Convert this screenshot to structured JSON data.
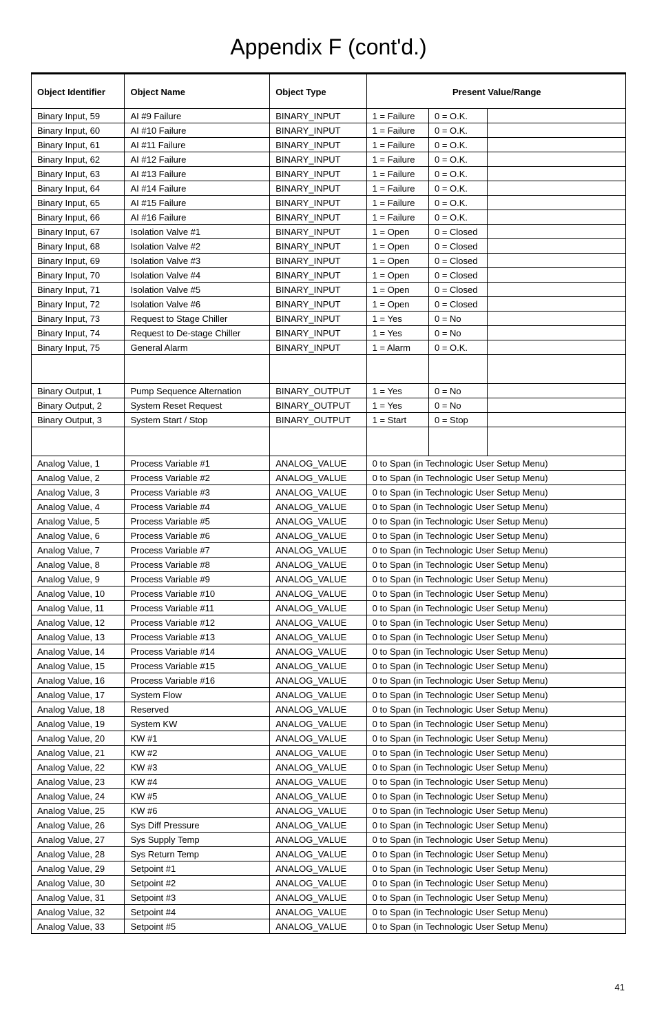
{
  "title": "Appendix F (cont'd.)",
  "page_number": "41",
  "headers": {
    "col1": "Object Identifier",
    "col2": "Object Name",
    "col3": "Object Type",
    "col4": "Present Value/Range"
  },
  "sections": [
    {
      "rows": [
        {
          "id": "Binary Input, 59",
          "name": "AI #9 Failure",
          "type": "BINARY_INPUT",
          "v1": "1 = Failure",
          "v0": "0 = O.K."
        },
        {
          "id": "Binary Input, 60",
          "name": "AI #10 Failure",
          "type": "BINARY_INPUT",
          "v1": "1 = Failure",
          "v0": "0 = O.K."
        },
        {
          "id": "Binary Input, 61",
          "name": "AI #11 Failure",
          "type": "BINARY_INPUT",
          "v1": "1 = Failure",
          "v0": "0 = O.K."
        },
        {
          "id": "Binary Input, 62",
          "name": "AI #12 Failure",
          "type": "BINARY_INPUT",
          "v1": "1 = Failure",
          "v0": "0 = O.K."
        },
        {
          "id": "Binary Input, 63",
          "name": "AI #13 Failure",
          "type": "BINARY_INPUT",
          "v1": "1 = Failure",
          "v0": "0 = O.K."
        },
        {
          "id": "Binary Input, 64",
          "name": "AI #14 Failure",
          "type": "BINARY_INPUT",
          "v1": "1 = Failure",
          "v0": "0 = O.K."
        },
        {
          "id": "Binary Input, 65",
          "name": "AI #15 Failure",
          "type": "BINARY_INPUT",
          "v1": "1 = Failure",
          "v0": "0 = O.K."
        },
        {
          "id": "Binary Input, 66",
          "name": "AI #16 Failure",
          "type": "BINARY_INPUT",
          "v1": "1 = Failure",
          "v0": "0 = O.K."
        },
        {
          "id": "Binary Input, 67",
          "name": "Isolation Valve #1",
          "type": "BINARY_INPUT",
          "v1": "1 = Open",
          "v0": "0 = Closed"
        },
        {
          "id": "Binary Input, 68",
          "name": "Isolation Valve #2",
          "type": "BINARY_INPUT",
          "v1": "1 = Open",
          "v0": "0 = Closed"
        },
        {
          "id": "Binary Input, 69",
          "name": "Isolation Valve #3",
          "type": "BINARY_INPUT",
          "v1": "1 = Open",
          "v0": "0 = Closed"
        },
        {
          "id": "Binary Input, 70",
          "name": "Isolation Valve #4",
          "type": "BINARY_INPUT",
          "v1": "1 = Open",
          "v0": "0 = Closed"
        },
        {
          "id": "Binary Input, 71",
          "name": "Isolation Valve #5",
          "type": "BINARY_INPUT",
          "v1": "1 = Open",
          "v0": "0 = Closed"
        },
        {
          "id": "Binary Input, 72",
          "name": "Isolation Valve #6",
          "type": "BINARY_INPUT",
          "v1": "1 = Open",
          "v0": "0 = Closed"
        },
        {
          "id": "Binary Input, 73",
          "name": "Request to Stage Chiller",
          "type": "BINARY_INPUT",
          "v1": "1 = Yes",
          "v0": "0 = No"
        },
        {
          "id": "Binary Input, 74",
          "name": "Request to De-stage Chiller",
          "type": "BINARY_INPUT",
          "v1": "1 = Yes",
          "v0": "0 = No"
        },
        {
          "id": "Binary Input, 75",
          "name": "General Alarm",
          "type": "BINARY_INPUT",
          "v1": "1 = Alarm",
          "v0": "0 = O.K."
        }
      ],
      "blanks": 2
    },
    {
      "rows": [
        {
          "id": "Binary Output, 1",
          "name": "Pump Sequence Alternation",
          "type": "BINARY_OUTPUT",
          "v1": "1 = Yes",
          "v0": "0 = No"
        },
        {
          "id": "Binary Output, 2",
          "name": "System Reset Request",
          "type": "BINARY_OUTPUT",
          "v1": "1 = Yes",
          "v0": "0 = No"
        },
        {
          "id": "Binary Output, 3",
          "name": "System Start / Stop",
          "type": "BINARY_OUTPUT",
          "v1": "1 = Start",
          "v0": "0 = Stop"
        }
      ],
      "blanks": 2
    },
    {
      "rows": [
        {
          "id": "Analog Value, 1",
          "name": "Process Variable #1",
          "type": "ANALOG_VALUE",
          "range": "0 to Span (in Technologic User Setup Menu)"
        },
        {
          "id": "Analog Value, 2",
          "name": "Process Variable #2",
          "type": "ANALOG_VALUE",
          "range": "0 to Span (in Technologic User Setup Menu)"
        },
        {
          "id": "Analog Value, 3",
          "name": "Process Variable #3",
          "type": "ANALOG_VALUE",
          "range": "0 to Span (in Technologic User Setup Menu)"
        },
        {
          "id": "Analog Value, 4",
          "name": "Process Variable #4",
          "type": "ANALOG_VALUE",
          "range": "0 to Span (in Technologic User Setup Menu)"
        },
        {
          "id": "Analog Value, 5",
          "name": "Process Variable #5",
          "type": "ANALOG_VALUE",
          "range": "0 to Span (in Technologic User Setup Menu)"
        },
        {
          "id": "Analog Value, 6",
          "name": "Process Variable #6",
          "type": "ANALOG_VALUE",
          "range": "0 to Span (in Technologic User Setup Menu)"
        },
        {
          "id": "Analog Value, 7",
          "name": "Process Variable #7",
          "type": "ANALOG_VALUE",
          "range": "0 to Span (in Technologic User Setup Menu)"
        },
        {
          "id": "Analog Value, 8",
          "name": "Process Variable #8",
          "type": "ANALOG_VALUE",
          "range": "0 to Span (in Technologic User Setup Menu)"
        },
        {
          "id": "Analog Value, 9",
          "name": "Process Variable #9",
          "type": "ANALOG_VALUE",
          "range": "0 to Span (in Technologic User Setup Menu)"
        },
        {
          "id": "Analog Value, 10",
          "name": "Process Variable #10",
          "type": "ANALOG_VALUE",
          "range": "0 to Span (in Technologic User Setup Menu)"
        },
        {
          "id": "Analog Value, 11",
          "name": "Process Variable #11",
          "type": "ANALOG_VALUE",
          "range": "0 to Span (in Technologic User Setup Menu)"
        },
        {
          "id": "Analog Value, 12",
          "name": "Process Variable #12",
          "type": "ANALOG_VALUE",
          "range": "0 to Span (in Technologic User Setup Menu)"
        },
        {
          "id": "Analog Value, 13",
          "name": "Process Variable #13",
          "type": "ANALOG_VALUE",
          "range": "0 to Span (in Technologic User Setup Menu)"
        },
        {
          "id": "Analog Value, 14",
          "name": "Process Variable #14",
          "type": "ANALOG_VALUE",
          "range": "0 to Span (in Technologic User Setup Menu)"
        },
        {
          "id": "Analog Value, 15",
          "name": "Process Variable #15",
          "type": "ANALOG_VALUE",
          "range": "0 to Span (in Technologic User Setup Menu)"
        },
        {
          "id": "Analog Value, 16",
          "name": "Process Variable #16",
          "type": "ANALOG_VALUE",
          "range": "0 to Span (in Technologic User Setup Menu)"
        },
        {
          "id": "Analog Value, 17",
          "name": "System Flow",
          "type": "ANALOG_VALUE",
          "range": "0 to Span (in Technologic User Setup Menu)"
        },
        {
          "id": "Analog Value, 18",
          "name": "Reserved",
          "type": "ANALOG_VALUE",
          "range": "0 to Span (in Technologic User Setup Menu)"
        },
        {
          "id": "Analog Value, 19",
          "name": "System KW",
          "type": "ANALOG_VALUE",
          "range": "0 to Span (in Technologic User Setup Menu)"
        },
        {
          "id": "Analog Value, 20",
          "name": "KW #1",
          "type": "ANALOG_VALUE",
          "range": "0 to Span (in Technologic User Setup Menu)"
        },
        {
          "id": "Analog Value, 21",
          "name": "KW #2",
          "type": "ANALOG_VALUE",
          "range": "0 to Span (in Technologic User Setup Menu)"
        },
        {
          "id": "Analog Value, 22",
          "name": "KW #3",
          "type": "ANALOG_VALUE",
          "range": "0 to Span (in Technologic User Setup Menu)"
        },
        {
          "id": "Analog Value, 23",
          "name": "KW #4",
          "type": "ANALOG_VALUE",
          "range": "0 to Span (in Technologic User Setup Menu)"
        },
        {
          "id": "Analog Value, 24",
          "name": "KW #5",
          "type": "ANALOG_VALUE",
          "range": "0 to Span (in Technologic User Setup Menu)"
        },
        {
          "id": "Analog Value, 25",
          "name": "KW #6",
          "type": "ANALOG_VALUE",
          "range": "0 to Span (in Technologic User Setup Menu)"
        },
        {
          "id": "Analog Value, 26",
          "name": "Sys Diff Pressure",
          "type": "ANALOG_VALUE",
          "range": "0 to Span (in Technologic User Setup Menu)"
        },
        {
          "id": "Analog Value, 27",
          "name": "Sys Supply Temp",
          "type": "ANALOG_VALUE",
          "range": "0 to Span (in Technologic User Setup Menu)"
        },
        {
          "id": "Analog Value, 28",
          "name": "Sys Return Temp",
          "type": "ANALOG_VALUE",
          "range": "0 to Span (in Technologic User Setup Menu)"
        },
        {
          "id": "Analog Value, 29",
          "name": "Setpoint #1",
          "type": "ANALOG_VALUE",
          "range": "0 to Span (in Technologic User Setup Menu)"
        },
        {
          "id": "Analog Value, 30",
          "name": "Setpoint #2",
          "type": "ANALOG_VALUE",
          "range": "0 to Span (in Technologic User Setup Menu)"
        },
        {
          "id": "Analog Value, 31",
          "name": "Setpoint #3",
          "type": "ANALOG_VALUE",
          "range": "0 to Span (in Technologic User Setup Menu)"
        },
        {
          "id": "Analog Value, 32",
          "name": "Setpoint #4",
          "type": "ANALOG_VALUE",
          "range": "0 to Span (in Technologic User Setup Menu)"
        },
        {
          "id": "Analog Value, 33",
          "name": "Setpoint #5",
          "type": "ANALOG_VALUE",
          "range": "0 to Span (in Technologic User Setup Menu)"
        }
      ],
      "blanks": 0
    }
  ]
}
